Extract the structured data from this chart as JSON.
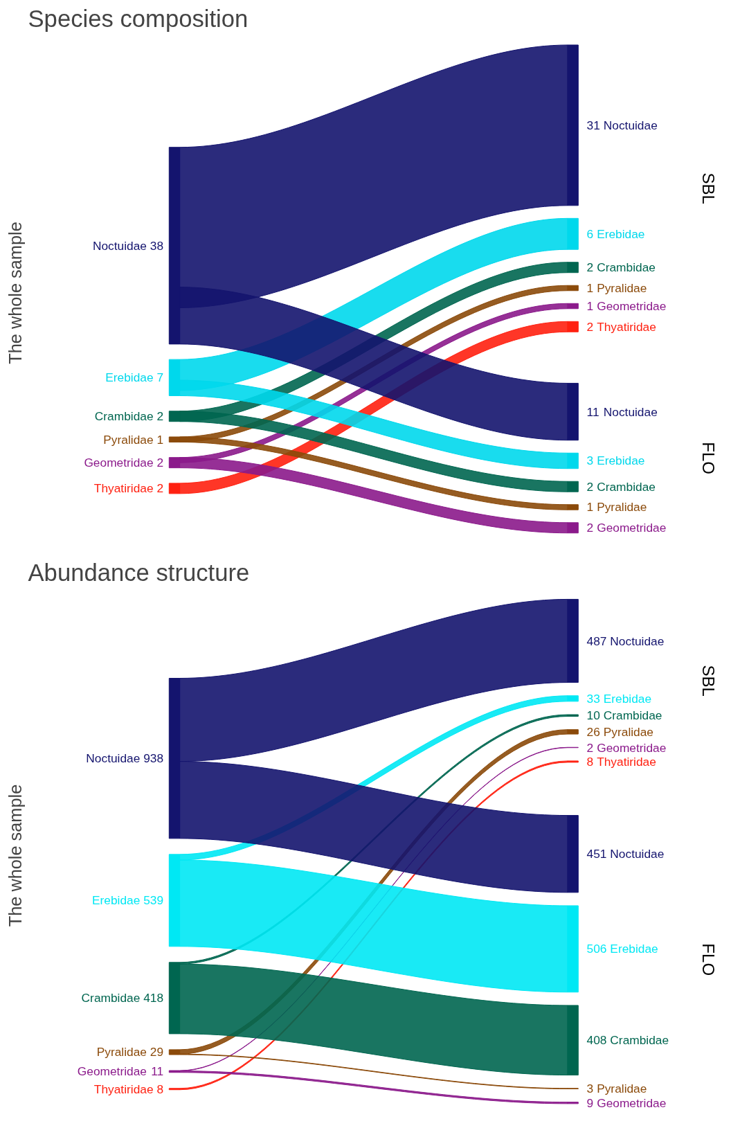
{
  "chart_data": [
    {
      "type": "other",
      "title": "Species composition",
      "ylabel": "The whole sample",
      "categories": [
        "Noctuidae",
        "Erebidae",
        "Crambidae",
        "Pyralidae",
        "Geometridae",
        "Thyatiridae"
      ],
      "values": [
        38,
        7,
        2,
        1,
        2,
        2
      ],
      "data_labels": true,
      "colors": [
        "#14146e",
        "#00d8ec",
        "#006650",
        "#8b4a0a",
        "#8b1a8b",
        "#ff2010"
      ],
      "series": [
        {
          "name": "SBL",
          "values": [
            31,
            6,
            2,
            1,
            1,
            2
          ]
        },
        {
          "name": "FLO",
          "values": [
            11,
            3,
            2,
            1,
            2,
            null
          ]
        }
      ]
    },
    {
      "type": "other",
      "title": "Abundance structure",
      "ylabel": "The whole sample",
      "categories": [
        "Noctuidae",
        "Erebidae",
        "Crambidae",
        "Pyralidae",
        "Geometridae",
        "Thyatiridae"
      ],
      "values": [
        938,
        539,
        418,
        29,
        11,
        8
      ],
      "data_labels": true,
      "colors": [
        "#14146e",
        "#00e8f4",
        "#006650",
        "#8b4a0a",
        "#8b1a8b",
        "#ff2010"
      ],
      "series": [
        {
          "name": "SBL",
          "values": [
            487,
            33,
            10,
            26,
            2,
            8
          ]
        },
        {
          "name": "FLO",
          "values": [
            451,
            506,
            408,
            3,
            9,
            null
          ]
        }
      ]
    }
  ]
}
